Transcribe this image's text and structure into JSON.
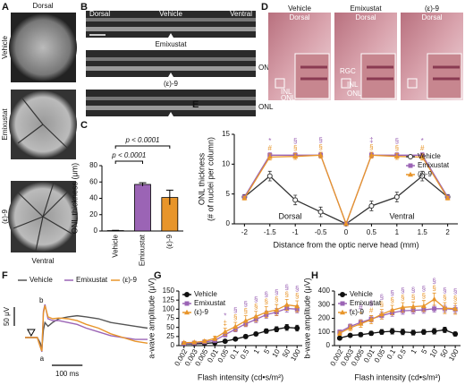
{
  "images": {
    "A": {
      "panel": "A",
      "top": "Dorsal",
      "bottom": "Ventral",
      "rows": [
        "Vehicle",
        "Emixustat",
        "(ε)-9"
      ]
    },
    "B": {
      "panel": "B",
      "left": "Dorsal",
      "right": "Ventral",
      "rows": [
        "Vehicle",
        "Emixustat",
        "(ε)-9"
      ],
      "layer": [
        "ONL",
        "ONL"
      ]
    },
    "D": {
      "panel": "D",
      "columns": [
        "Vehicle",
        "Emixustat",
        "(ε)-9"
      ],
      "orientation": [
        "Dorsal",
        "Dorsal",
        "Dorsal"
      ],
      "layers": [
        [
          "INL",
          "ONL"
        ],
        [
          "RGC",
          "INL",
          "ONL"
        ]
      ]
    }
  },
  "chart_data": [
    {
      "type": "bar",
      "panel": "C",
      "ylabel": "ONL thickness (μm)",
      "categories": [
        "Vehicle",
        "Emixustat",
        "(ε)-9"
      ],
      "values": [
        0.5,
        57,
        41
      ],
      "errors": [
        0.3,
        2,
        9
      ],
      "colors": [
        "#ffffff",
        "#9b64b5",
        "#e8952a"
      ],
      "ylim": [
        0,
        80
      ],
      "yticks": [
        0,
        20,
        40,
        60,
        80
      ],
      "annotations": [
        "p < 0.0001",
        "p < 0.0001"
      ]
    },
    {
      "type": "line",
      "panel": "E",
      "ylabel": [
        "ONL thickness",
        "(# of nuclei per column)"
      ],
      "xlabel": "Distance from the optic nerve head (mm)",
      "x": [
        -2,
        -1.5,
        -1,
        -0.5,
        0,
        0.5,
        1,
        1.5,
        2
      ],
      "xlim": [
        -2.2,
        2.2
      ],
      "xticks": [
        -2,
        -1.5,
        -1,
        -0.5,
        0,
        0.5,
        1,
        1.5,
        2
      ],
      "ylim": [
        0,
        15
      ],
      "yticks": [
        0,
        5,
        10,
        15
      ],
      "regions": [
        "Dorsal",
        "Ventral"
      ],
      "legend": "center-right",
      "series": [
        {
          "name": "Vehicle",
          "color": "#333333",
          "marker": "circle-open",
          "values": [
            4.5,
            8,
            4,
            2,
            0,
            3,
            4.5,
            8,
            4.5
          ],
          "errors": [
            0.4,
            0.8,
            0.8,
            0.8,
            0,
            0.8,
            0.8,
            0.8,
            0.4
          ]
        },
        {
          "name": "Emixustat",
          "color": "#9b64b5",
          "marker": "square",
          "values": [
            4.5,
            11.5,
            11.5,
            11.5,
            0,
            11.5,
            11.5,
            11.5,
            4.5
          ],
          "errors": [
            0.3,
            0.4,
            0.4,
            0.4,
            0,
            0.4,
            0.4,
            0.4,
            0.3
          ],
          "significance": [
            null,
            "*",
            "§",
            "§",
            null,
            "‡",
            "§",
            "*",
            null
          ]
        },
        {
          "name": "(ε)-9",
          "color": "#e8952a",
          "marker": "triangle",
          "values": [
            4.3,
            11.2,
            11.3,
            11.5,
            0,
            11.5,
            11.3,
            11.2,
            4.3
          ],
          "errors": [
            0.3,
            0.5,
            0.5,
            0.5,
            0,
            0.5,
            0.5,
            0.5,
            0.3
          ],
          "significance": [
            null,
            "#",
            "§",
            "§",
            null,
            "§",
            "§",
            "#",
            null
          ]
        }
      ]
    },
    {
      "type": "trace",
      "panel": "F",
      "x": [
        0,
        20,
        40,
        50,
        55,
        60,
        65,
        75,
        90,
        110,
        140,
        170,
        200,
        240,
        280,
        320,
        360,
        400
      ],
      "xlim": [
        0,
        400
      ],
      "ylim": [
        -50,
        100
      ],
      "legend": "top-outside",
      "annotations": [
        "a",
        "b"
      ],
      "scalebars": [
        {
          "value": 50,
          "label": "50 μV"
        },
        {
          "value": 100,
          "label": "100 ms"
        }
      ],
      "series": [
        {
          "name": "Vehicle",
          "color": "#555555",
          "values": [
            0,
            0,
            0,
            -15,
            -30,
            20,
            40,
            30,
            40,
            50,
            55,
            58,
            55,
            50,
            40,
            35,
            30,
            25
          ]
        },
        {
          "name": "Emixustat",
          "color": "#9b64b5",
          "values": [
            0,
            0,
            0,
            -25,
            -38,
            70,
            88,
            50,
            45,
            45,
            40,
            35,
            25,
            15,
            5,
            0,
            -5,
            -5
          ]
        },
        {
          "name": "(ε)-9",
          "color": "#e8952a",
          "values": [
            0,
            0,
            0,
            -25,
            -36,
            65,
            85,
            55,
            50,
            52,
            50,
            45,
            35,
            25,
            10,
            0,
            -10,
            -15
          ]
        }
      ]
    },
    {
      "type": "line",
      "panel": "G",
      "ylabel": "a-wave amplitude (μV)",
      "xlabel": "Flash intensity (cd•s/m²)",
      "categories": [
        "0.002",
        "0.003",
        "0.005",
        "0.01",
        "0.05",
        "0.1",
        "0.5",
        "1",
        "5",
        "10",
        "50",
        "100"
      ],
      "ylim": [
        0,
        150
      ],
      "yticks": [
        0,
        25,
        50,
        75,
        100,
        125,
        150
      ],
      "legend": "upper-left",
      "series": [
        {
          "name": "Vehicle",
          "color": "#111111",
          "marker": "circle",
          "values": [
            5,
            5,
            6,
            8,
            12,
            18,
            25,
            32,
            40,
            45,
            50,
            48
          ],
          "errors": [
            2,
            2,
            2,
            2,
            3,
            4,
            5,
            5,
            6,
            7,
            8,
            8
          ]
        },
        {
          "name": "Emixustat",
          "color": "#9b64b5",
          "marker": "square",
          "values": [
            6,
            7,
            10,
            14,
            30,
            45,
            60,
            72,
            85,
            92,
            102,
            100
          ],
          "errors": [
            2,
            2,
            3,
            4,
            6,
            7,
            8,
            9,
            10,
            10,
            10,
            10
          ],
          "significance": [
            null,
            null,
            null,
            null,
            "*",
            "§",
            "§",
            "§",
            "§",
            "§",
            "§",
            "§"
          ]
        },
        {
          "name": "(ε)-9",
          "color": "#e8952a",
          "marker": "triangle",
          "values": [
            8,
            9,
            12,
            20,
            38,
            52,
            68,
            80,
            92,
            98,
            112,
            108
          ],
          "errors": [
            3,
            3,
            4,
            6,
            10,
            12,
            14,
            14,
            15,
            15,
            15,
            15
          ],
          "significance": [
            null,
            null,
            null,
            null,
            "‡",
            "§",
            "§",
            "§",
            "§",
            "§",
            "§",
            "§"
          ]
        }
      ]
    },
    {
      "type": "line",
      "panel": "H",
      "ylabel": "b-wave amplitude (μV)",
      "xlabel": "Flash intensity (cd•s/m²)",
      "categories": [
        "0.002",
        "0.003",
        "0.005",
        "0.01",
        "0.05",
        "0.1",
        "0.5",
        "1",
        "5",
        "10",
        "50",
        "100"
      ],
      "ylim": [
        0,
        400
      ],
      "yticks": [
        0,
        100,
        200,
        300,
        400
      ],
      "legend": "upper-left",
      "series": [
        {
          "name": "Vehicle",
          "color": "#111111",
          "marker": "circle",
          "values": [
            55,
            75,
            80,
            90,
            100,
            105,
            100,
            95,
            100,
            105,
            115,
            85
          ],
          "errors": [
            10,
            12,
            15,
            15,
            18,
            20,
            20,
            18,
            18,
            20,
            20,
            15
          ]
        },
        {
          "name": "Emixustat",
          "color": "#9b64b5",
          "marker": "square",
          "values": [
            100,
            140,
            170,
            195,
            220,
            240,
            255,
            258,
            262,
            270,
            270,
            265
          ],
          "errors": [
            15,
            18,
            20,
            22,
            25,
            25,
            25,
            25,
            25,
            25,
            25,
            25
          ],
          "significance": [
            null,
            "*",
            "#",
            "§",
            "§",
            "§",
            "§",
            "§",
            "§",
            "§",
            "§",
            "§"
          ]
        },
        {
          "name": "(ε)-9",
          "color": "#e8952a",
          "marker": "triangle",
          "values": [
            90,
            130,
            160,
            190,
            230,
            260,
            280,
            285,
            290,
            340,
            275,
            270
          ],
          "errors": [
            15,
            20,
            25,
            30,
            35,
            35,
            35,
            35,
            40,
            45,
            40,
            40
          ],
          "significance": [
            null,
            null,
            "*",
            "#",
            "§",
            "§",
            "§",
            "§",
            "§",
            "§",
            "§",
            "§"
          ]
        }
      ]
    }
  ]
}
